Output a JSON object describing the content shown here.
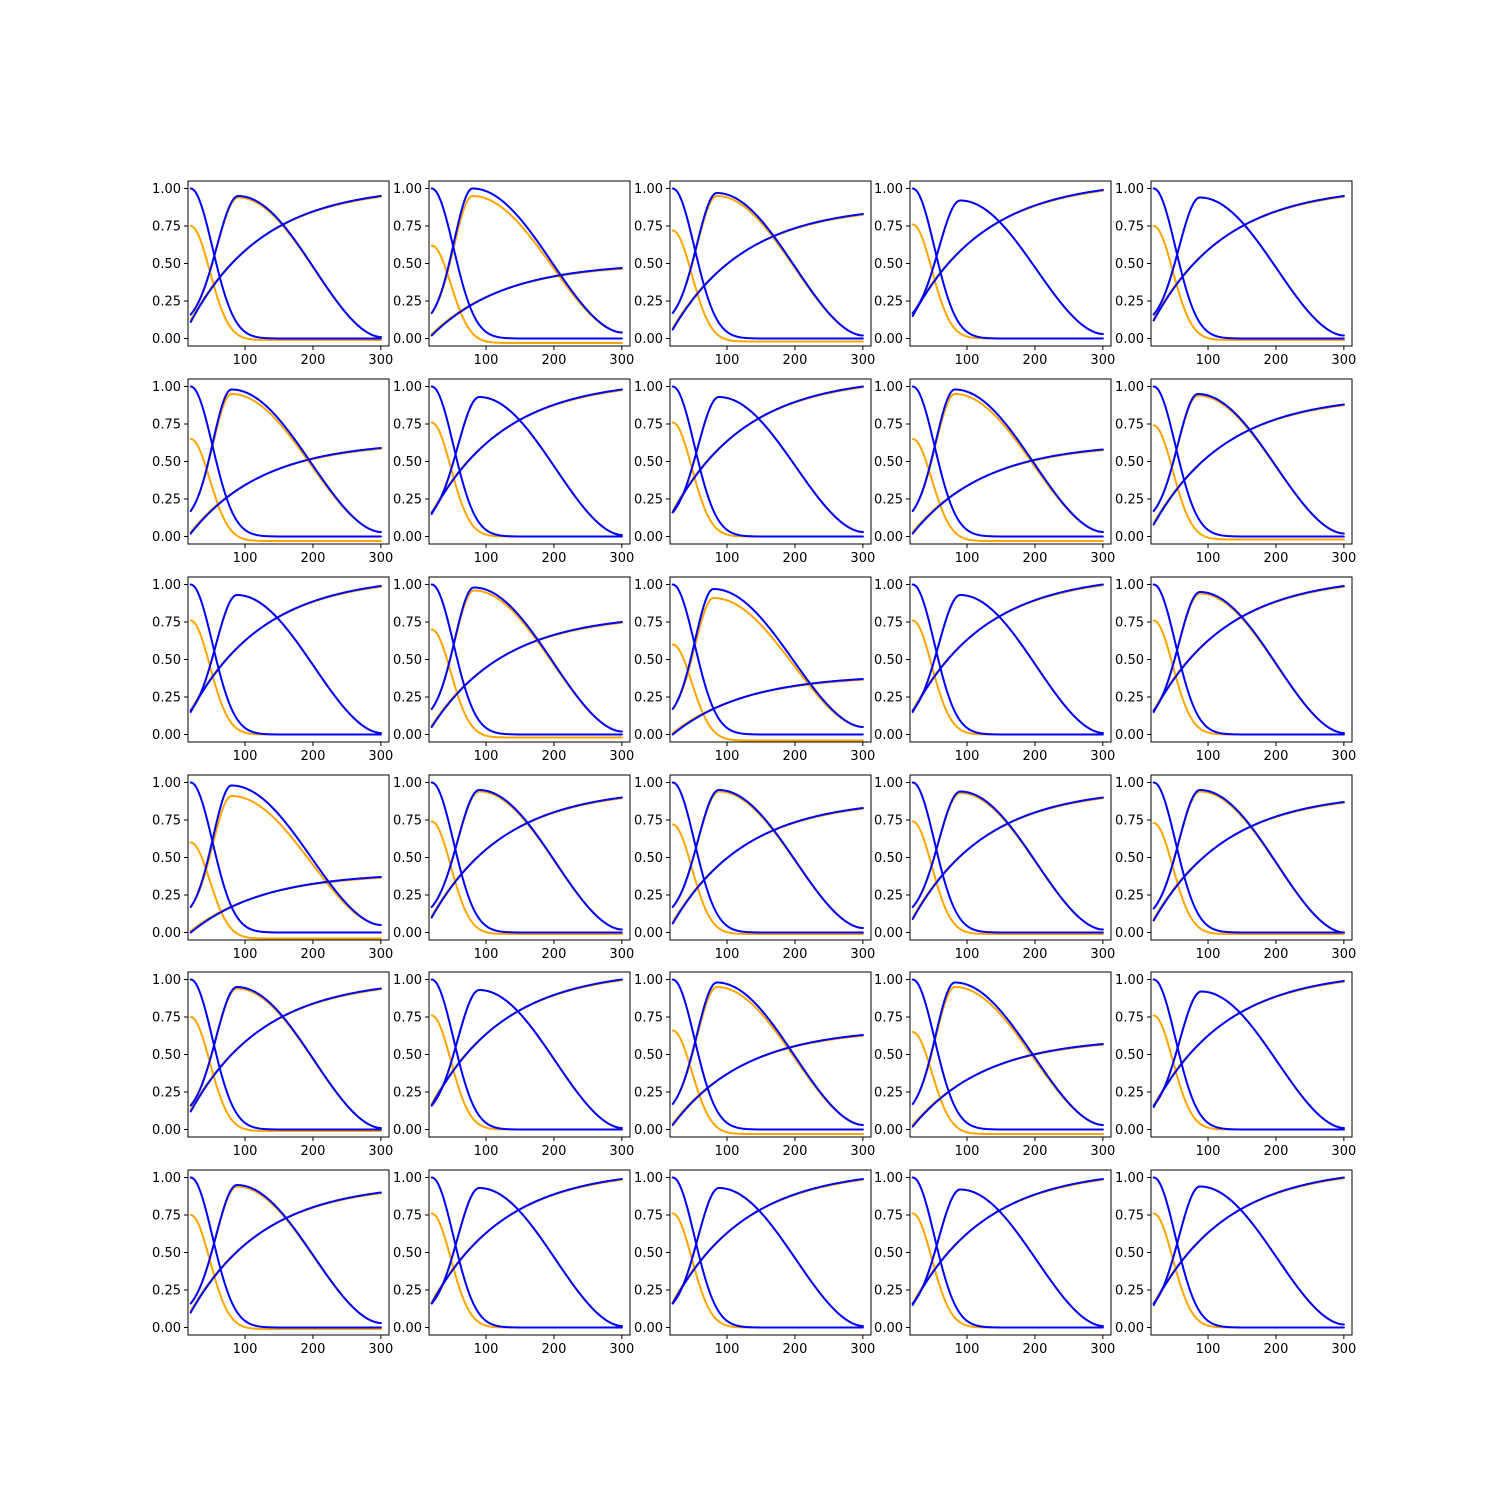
{
  "colors": {
    "predicted": "#ffa500",
    "reference": "#0000ff"
  },
  "grid": {
    "rows": 6,
    "cols": 5
  },
  "axis_defaults": {
    "xlim": [
      16,
      312
    ],
    "x_ticks": [
      100,
      200,
      300
    ],
    "x_tick_labels": [
      "100",
      "200",
      "300"
    ],
    "y_ticks": [
      0.0,
      0.25,
      0.5,
      0.75,
      1.0
    ],
    "y_tick_labels": [
      "0.00",
      "0.25",
      "0.50",
      "0.75",
      "1.00"
    ]
  },
  "chart_data": [
    {
      "type": "line",
      "x_start": 20,
      "x_end": 300,
      "ylim": [
        -0.05,
        1.05
      ],
      "peak_x": 90,
      "peak_ref": 0.95,
      "peak_pred": 0.94,
      "decay_pred_start": 0.75,
      "decay_pred_floor": -0.01,
      "decay_ref_floor": 0.0,
      "rise_start": 0.11,
      "rise_end": 0.95,
      "peak_end": 0.01,
      "peak_start": 0.16
    },
    {
      "type": "line",
      "x_start": 20,
      "x_end": 300,
      "ylim": [
        -0.05,
        1.05
      ],
      "peak_x": 80,
      "peak_ref": 1.0,
      "peak_pred": 0.95,
      "decay_pred_start": 0.62,
      "decay_pred_floor": -0.03,
      "decay_ref_floor": 0.0,
      "rise_start": 0.02,
      "rise_end": 0.47,
      "peak_end": 0.04,
      "peak_start": 0.17
    },
    {
      "type": "line",
      "x_start": 20,
      "x_end": 300,
      "ylim": [
        -0.05,
        1.05
      ],
      "peak_x": 85,
      "peak_ref": 0.97,
      "peak_pred": 0.95,
      "decay_pred_start": 0.72,
      "decay_pred_floor": -0.02,
      "decay_ref_floor": 0.0,
      "rise_start": 0.06,
      "rise_end": 0.83,
      "peak_end": 0.02,
      "peak_start": 0.17
    },
    {
      "type": "line",
      "x_start": 20,
      "x_end": 300,
      "ylim": [
        -0.05,
        1.05
      ],
      "peak_x": 90,
      "peak_ref": 0.92,
      "peak_pred": 0.92,
      "decay_pred_start": 0.76,
      "decay_pred_floor": 0.0,
      "decay_ref_floor": 0.0,
      "rise_start": 0.15,
      "rise_end": 0.99,
      "peak_end": 0.03,
      "peak_start": 0.17
    },
    {
      "type": "line",
      "x_start": 20,
      "x_end": 300,
      "ylim": [
        -0.05,
        1.05
      ],
      "peak_x": 88,
      "peak_ref": 0.94,
      "peak_pred": 0.94,
      "decay_pred_start": 0.75,
      "decay_pred_floor": -0.01,
      "decay_ref_floor": 0.0,
      "rise_start": 0.12,
      "rise_end": 0.95,
      "peak_end": 0.02,
      "peak_start": 0.16
    },
    {
      "type": "line",
      "x_start": 20,
      "x_end": 300,
      "ylim": [
        -0.05,
        1.05
      ],
      "peak_x": 80,
      "peak_ref": 0.98,
      "peak_pred": 0.95,
      "decay_pred_start": 0.65,
      "decay_pred_floor": -0.03,
      "decay_ref_floor": 0.0,
      "rise_start": 0.02,
      "rise_end": 0.59,
      "peak_end": 0.03,
      "peak_start": 0.17
    },
    {
      "type": "line",
      "x_start": 20,
      "x_end": 300,
      "ylim": [
        -0.05,
        1.05
      ],
      "peak_x": 90,
      "peak_ref": 0.93,
      "peak_pred": 0.93,
      "decay_pred_start": 0.76,
      "decay_pred_floor": 0.0,
      "decay_ref_floor": 0.0,
      "rise_start": 0.15,
      "rise_end": 0.98,
      "peak_end": 0.01,
      "peak_start": 0.16
    },
    {
      "type": "line",
      "x_start": 20,
      "x_end": 300,
      "ylim": [
        -0.05,
        1.05
      ],
      "peak_x": 88,
      "peak_ref": 0.93,
      "peak_pred": 0.93,
      "decay_pred_start": 0.76,
      "decay_pred_floor": 0.0,
      "decay_ref_floor": 0.0,
      "rise_start": 0.16,
      "rise_end": 1.0,
      "peak_end": 0.03,
      "peak_start": 0.16
    },
    {
      "type": "line",
      "x_start": 20,
      "x_end": 300,
      "ylim": [
        -0.05,
        1.05
      ],
      "peak_x": 82,
      "peak_ref": 0.98,
      "peak_pred": 0.95,
      "decay_pred_start": 0.65,
      "decay_pred_floor": -0.03,
      "decay_ref_floor": 0.0,
      "rise_start": 0.02,
      "rise_end": 0.58,
      "peak_end": 0.03,
      "peak_start": 0.17
    },
    {
      "type": "line",
      "x_start": 20,
      "x_end": 300,
      "ylim": [
        -0.05,
        1.05
      ],
      "peak_x": 85,
      "peak_ref": 0.95,
      "peak_pred": 0.94,
      "decay_pred_start": 0.74,
      "decay_pred_floor": -0.02,
      "decay_ref_floor": 0.0,
      "rise_start": 0.08,
      "rise_end": 0.88,
      "peak_end": 0.02,
      "peak_start": 0.17
    },
    {
      "type": "line",
      "x_start": 20,
      "x_end": 300,
      "ylim": [
        -0.05,
        1.05
      ],
      "peak_x": 88,
      "peak_ref": 0.93,
      "peak_pred": 0.93,
      "decay_pred_start": 0.76,
      "decay_pred_floor": 0.0,
      "decay_ref_floor": 0.0,
      "rise_start": 0.15,
      "rise_end": 0.99,
      "peak_end": 0.01,
      "peak_start": 0.16
    },
    {
      "type": "line",
      "x_start": 20,
      "x_end": 300,
      "ylim": [
        -0.05,
        1.05
      ],
      "peak_x": 82,
      "peak_ref": 0.98,
      "peak_pred": 0.96,
      "decay_pred_start": 0.7,
      "decay_pred_floor": -0.02,
      "decay_ref_floor": 0.0,
      "rise_start": 0.05,
      "rise_end": 0.75,
      "peak_end": 0.02,
      "peak_start": 0.17
    },
    {
      "type": "line",
      "x_start": 20,
      "x_end": 300,
      "ylim": [
        -0.05,
        1.05
      ],
      "peak_x": 80,
      "peak_ref": 0.97,
      "peak_pred": 0.91,
      "decay_pred_start": 0.6,
      "decay_pred_floor": -0.04,
      "decay_ref_floor": 0.0,
      "rise_start": 0.0,
      "rise_end": 0.37,
      "peak_end": 0.05,
      "peak_start": 0.17
    },
    {
      "type": "line",
      "x_start": 20,
      "x_end": 300,
      "ylim": [
        -0.05,
        1.05
      ],
      "peak_x": 90,
      "peak_ref": 0.93,
      "peak_pred": 0.93,
      "decay_pred_start": 0.76,
      "decay_pred_floor": 0.0,
      "decay_ref_floor": 0.0,
      "rise_start": 0.15,
      "rise_end": 1.0,
      "peak_end": 0.01,
      "peak_start": 0.16
    },
    {
      "type": "line",
      "x_start": 20,
      "x_end": 300,
      "ylim": [
        -0.05,
        1.05
      ],
      "peak_x": 88,
      "peak_ref": 0.95,
      "peak_pred": 0.94,
      "decay_pred_start": 0.76,
      "decay_pred_floor": 0.0,
      "decay_ref_floor": 0.0,
      "rise_start": 0.15,
      "rise_end": 0.99,
      "peak_end": 0.01,
      "peak_start": 0.16
    },
    {
      "type": "line",
      "x_start": 20,
      "x_end": 300,
      "ylim": [
        -0.05,
        1.05
      ],
      "peak_x": 80,
      "peak_ref": 0.98,
      "peak_pred": 0.91,
      "decay_pred_start": 0.6,
      "decay_pred_floor": -0.04,
      "decay_ref_floor": 0.0,
      "rise_start": 0.0,
      "rise_end": 0.37,
      "peak_end": 0.05,
      "peak_start": 0.17
    },
    {
      "type": "line",
      "x_start": 20,
      "x_end": 300,
      "ylim": [
        -0.05,
        1.05
      ],
      "peak_x": 90,
      "peak_ref": 0.95,
      "peak_pred": 0.94,
      "decay_pred_start": 0.74,
      "decay_pred_floor": -0.01,
      "decay_ref_floor": 0.0,
      "rise_start": 0.1,
      "rise_end": 0.9,
      "peak_end": 0.02,
      "peak_start": 0.17
    },
    {
      "type": "line",
      "x_start": 20,
      "x_end": 300,
      "ylim": [
        -0.05,
        1.05
      ],
      "peak_x": 88,
      "peak_ref": 0.95,
      "peak_pred": 0.94,
      "decay_pred_start": 0.72,
      "decay_pred_floor": -0.01,
      "decay_ref_floor": 0.0,
      "rise_start": 0.06,
      "rise_end": 0.83,
      "peak_end": 0.03,
      "peak_start": 0.17
    },
    {
      "type": "line",
      "x_start": 20,
      "x_end": 300,
      "ylim": [
        -0.05,
        1.05
      ],
      "peak_x": 90,
      "peak_ref": 0.94,
      "peak_pred": 0.93,
      "decay_pred_start": 0.74,
      "decay_pred_floor": -0.01,
      "decay_ref_floor": 0.0,
      "rise_start": 0.09,
      "rise_end": 0.9,
      "peak_end": 0.02,
      "peak_start": 0.17
    },
    {
      "type": "line",
      "x_start": 20,
      "x_end": 300,
      "ylim": [
        -0.05,
        1.05
      ],
      "peak_x": 88,
      "peak_ref": 0.95,
      "peak_pred": 0.94,
      "decay_pred_start": 0.73,
      "decay_pred_floor": -0.01,
      "decay_ref_floor": 0.0,
      "rise_start": 0.08,
      "rise_end": 0.87,
      "peak_end": 0.0,
      "peak_start": 0.16
    },
    {
      "type": "line",
      "x_start": 20,
      "x_end": 300,
      "ylim": [
        -0.05,
        1.05
      ],
      "peak_x": 88,
      "peak_ref": 0.95,
      "peak_pred": 0.94,
      "decay_pred_start": 0.75,
      "decay_pred_floor": -0.01,
      "decay_ref_floor": 0.0,
      "rise_start": 0.12,
      "rise_end": 0.94,
      "peak_end": 0.01,
      "peak_start": 0.16
    },
    {
      "type": "line",
      "x_start": 20,
      "x_end": 300,
      "ylim": [
        -0.05,
        1.05
      ],
      "peak_x": 90,
      "peak_ref": 0.93,
      "peak_pred": 0.93,
      "decay_pred_start": 0.76,
      "decay_pred_floor": 0.0,
      "decay_ref_floor": 0.0,
      "rise_start": 0.16,
      "rise_end": 1.0,
      "peak_end": 0.01,
      "peak_start": 0.16
    },
    {
      "type": "line",
      "x_start": 20,
      "x_end": 300,
      "ylim": [
        -0.05,
        1.05
      ],
      "peak_x": 85,
      "peak_ref": 0.98,
      "peak_pred": 0.95,
      "decay_pred_start": 0.66,
      "decay_pred_floor": -0.03,
      "decay_ref_floor": 0.0,
      "rise_start": 0.03,
      "rise_end": 0.63,
      "peak_end": 0.03,
      "peak_start": 0.17
    },
    {
      "type": "line",
      "x_start": 20,
      "x_end": 300,
      "ylim": [
        -0.05,
        1.05
      ],
      "peak_x": 82,
      "peak_ref": 0.98,
      "peak_pred": 0.95,
      "decay_pred_start": 0.65,
      "decay_pred_floor": -0.03,
      "decay_ref_floor": 0.0,
      "rise_start": 0.02,
      "rise_end": 0.57,
      "peak_end": 0.03,
      "peak_start": 0.17
    },
    {
      "type": "line",
      "x_start": 20,
      "x_end": 300,
      "ylim": [
        -0.05,
        1.05
      ],
      "peak_x": 90,
      "peak_ref": 0.92,
      "peak_pred": 0.92,
      "decay_pred_start": 0.76,
      "decay_pred_floor": 0.0,
      "decay_ref_floor": 0.0,
      "rise_start": 0.15,
      "rise_end": 0.99,
      "peak_end": 0.01,
      "peak_start": 0.16
    },
    {
      "type": "line",
      "x_start": 20,
      "x_end": 300,
      "ylim": [
        -0.05,
        1.05
      ],
      "peak_x": 88,
      "peak_ref": 0.95,
      "peak_pred": 0.94,
      "decay_pred_start": 0.75,
      "decay_pred_floor": -0.01,
      "decay_ref_floor": 0.0,
      "rise_start": 0.1,
      "rise_end": 0.9,
      "peak_end": 0.03,
      "peak_start": 0.16
    },
    {
      "type": "line",
      "x_start": 20,
      "x_end": 300,
      "ylim": [
        -0.05,
        1.05
      ],
      "peak_x": 90,
      "peak_ref": 0.93,
      "peak_pred": 0.93,
      "decay_pred_start": 0.76,
      "decay_pred_floor": 0.0,
      "decay_ref_floor": 0.0,
      "rise_start": 0.16,
      "rise_end": 0.99,
      "peak_end": 0.01,
      "peak_start": 0.16
    },
    {
      "type": "line",
      "x_start": 20,
      "x_end": 300,
      "ylim": [
        -0.05,
        1.05
      ],
      "peak_x": 88,
      "peak_ref": 0.93,
      "peak_pred": 0.93,
      "decay_pred_start": 0.76,
      "decay_pred_floor": 0.0,
      "decay_ref_floor": 0.0,
      "rise_start": 0.16,
      "rise_end": 0.99,
      "peak_end": 0.01,
      "peak_start": 0.16
    },
    {
      "type": "line",
      "x_start": 20,
      "x_end": 300,
      "ylim": [
        -0.05,
        1.05
      ],
      "peak_x": 90,
      "peak_ref": 0.92,
      "peak_pred": 0.92,
      "decay_pred_start": 0.76,
      "decay_pred_floor": 0.0,
      "decay_ref_floor": 0.0,
      "rise_start": 0.15,
      "rise_end": 0.99,
      "peak_end": 0.01,
      "peak_start": 0.16
    },
    {
      "type": "line",
      "x_start": 20,
      "x_end": 300,
      "ylim": [
        -0.05,
        1.05
      ],
      "peak_x": 88,
      "peak_ref": 0.94,
      "peak_pred": 0.94,
      "decay_pred_start": 0.76,
      "decay_pred_floor": 0.0,
      "decay_ref_floor": 0.0,
      "rise_start": 0.15,
      "rise_end": 1.0,
      "peak_end": 0.02,
      "peak_start": 0.16
    }
  ]
}
